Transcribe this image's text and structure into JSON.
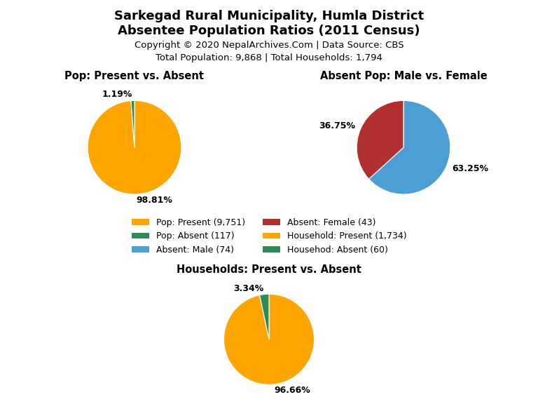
{
  "title": "Sarkegad Rural Municipality, Humla District",
  "subtitle": "Absentee Population Ratios (2011 Census)",
  "annotations": [
    "Copyright © 2020 NepalArchives.Com | Data Source: CBS",
    "Total Population: 9,868 | Total Households: 1,794"
  ],
  "legend": "center",
  "chart_data": [
    {
      "type": "pie",
      "title": "Pop: Present vs. Absent",
      "categories": [
        "Pop: Present (9,751)",
        "Pop: Absent (117)"
      ],
      "values": [
        98.81,
        1.19
      ],
      "value_labels": [
        "98.81%",
        "1.19%"
      ],
      "colors": [
        "#FFA500",
        "#2D8B57"
      ],
      "data_labels": true
    },
    {
      "type": "pie",
      "title": "Absent Pop: Male vs. Female",
      "categories": [
        "Absent: Male (74)",
        "Absent: Female (43)"
      ],
      "values": [
        63.25,
        36.75
      ],
      "value_labels": [
        "63.25%",
        "36.75%"
      ],
      "colors": [
        "#4B9FD4",
        "#B03030"
      ],
      "data_labels": true
    },
    {
      "type": "pie",
      "title": "Households: Present vs. Absent",
      "categories": [
        "Household: Present (1,734)",
        "Househod: Absent (60)"
      ],
      "values": [
        96.66,
        3.34
      ],
      "value_labels": [
        "96.66%",
        "3.34%"
      ],
      "colors": [
        "#FFA500",
        "#2D8B57"
      ],
      "data_labels": true
    }
  ]
}
